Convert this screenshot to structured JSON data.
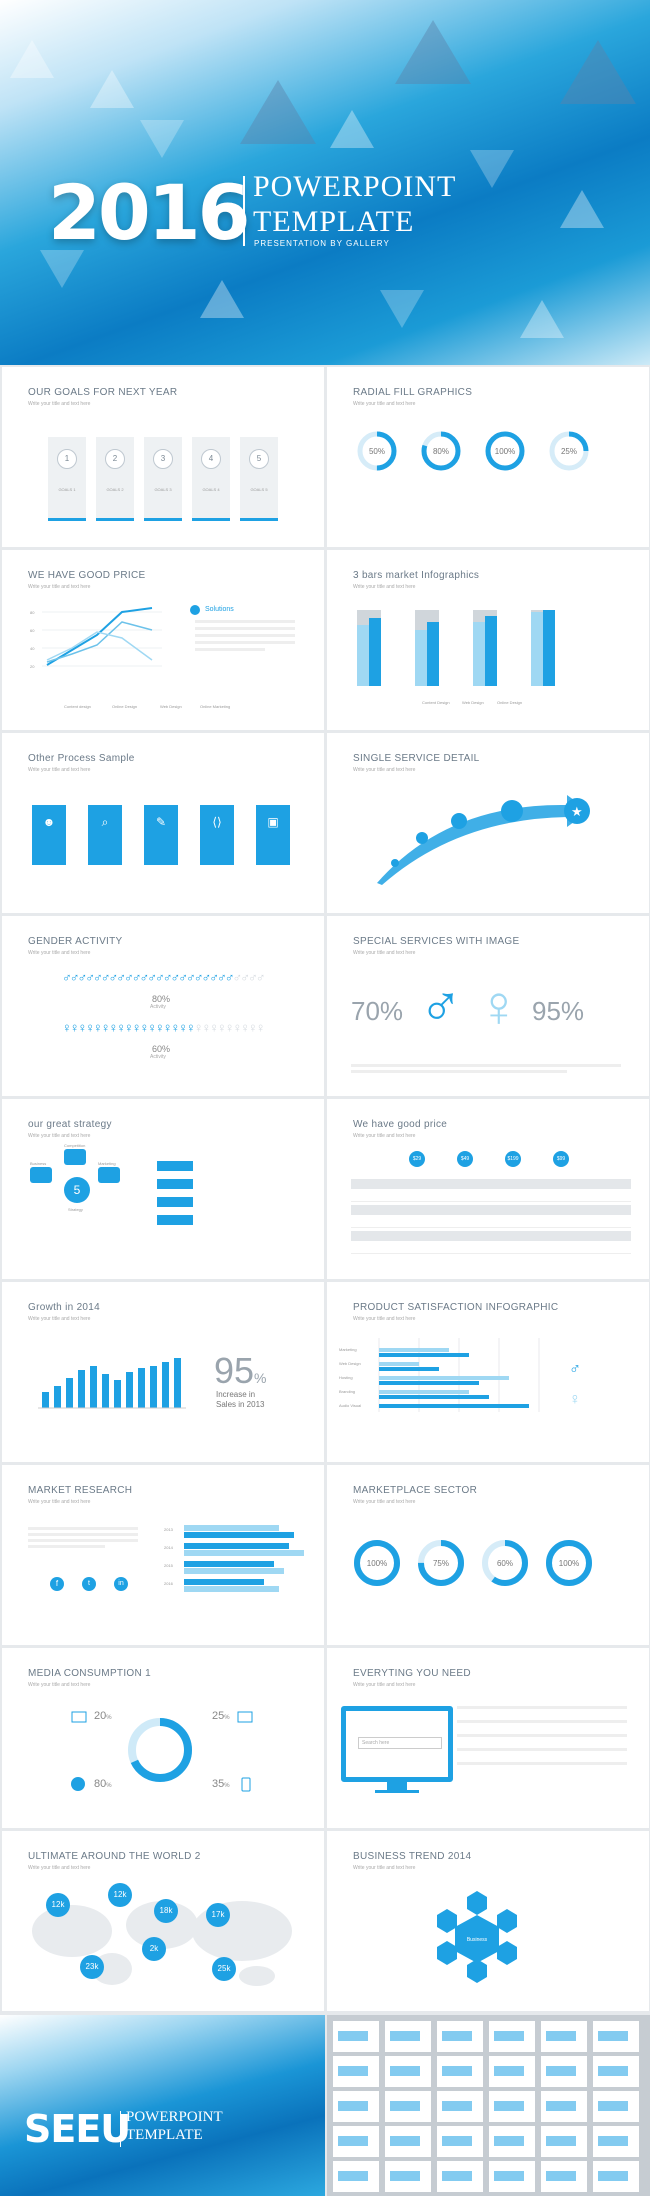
{
  "hero": {
    "year": "2016",
    "title_line1": "POWERPOINT",
    "title_line2": "TEMPLATE",
    "subtitle": "PRESENTATION BY GALLERY"
  },
  "slides": {
    "goals": {
      "title": "OUR GOALS FOR NEXT YEAR",
      "sub": "Write your title and text here",
      "numbers": [
        "1",
        "2",
        "3",
        "4",
        "5"
      ],
      "labels": [
        "GOALS 1",
        "GOALS 2",
        "GOALS 3",
        "GOALS 4",
        "GOALS 5"
      ]
    },
    "radial": {
      "title": "RADIAL FILL GRAPHICS",
      "sub": "Write your title and text here",
      "values": [
        "50%",
        "80%",
        "100%",
        "25%"
      ],
      "fractions": [
        0.5,
        0.8,
        1.0,
        0.25
      ]
    },
    "price": {
      "title": "WE HAVE GOOD PRICE",
      "sub": "Write your title and text here",
      "heading": "Solutions",
      "yticks": [
        "80",
        "60",
        "40",
        "20"
      ],
      "legend": [
        "Content design",
        "Online Design",
        "Web Design",
        "Online Marketing"
      ]
    },
    "bars3": {
      "title": "3 bars market Infographics",
      "sub": "Write your title and text here",
      "legend": [
        "Content Design",
        "Web Design",
        "Online Design"
      ]
    },
    "process": {
      "title": "Other Process Sample",
      "sub": "Write your title and text here",
      "icons": [
        "users-icon",
        "search-icon",
        "pen-icon",
        "code-icon",
        "printer-icon"
      ],
      "glyphs": [
        "☻",
        "⌕",
        "✎",
        "⟨⟩",
        "▣"
      ]
    },
    "service": {
      "title": "SINGLE SERVICE DETAIL",
      "sub": "Write your title and text here"
    },
    "gender": {
      "title": "GENDER ACTIVITY",
      "sub": "Write your title and text here",
      "pct1": "80%",
      "pct2": "60%",
      "label": "Activity"
    },
    "special": {
      "title": "SPECIAL SERVICES WITH IMAGE",
      "sub": "Write your title and text here",
      "male_pct": "70%",
      "female_pct": "95%"
    },
    "strategy": {
      "title": "our great strategy",
      "sub": "Write your title and text here",
      "center": "5",
      "nodes": [
        "Competition",
        "Marketing",
        "Strategy",
        "Business"
      ]
    },
    "pricing": {
      "title": "We have good price",
      "sub": "Write your title and text here",
      "plans": [
        "$29",
        "$49",
        "$199",
        "$99"
      ]
    },
    "growth": {
      "title": "Growth in 2014",
      "sub": "Write your title and text here",
      "big": "95",
      "unit": "%",
      "caption1": "Increase in",
      "caption2": "Sales in 2013"
    },
    "satisfaction": {
      "title": "PRODUCT SATISFACTION INFOGRAPHIC",
      "sub": "Write your title and text here",
      "rows": [
        "Marketing",
        "Web Design",
        "Hosting",
        "Branding",
        "Audio Visual"
      ]
    },
    "research": {
      "title": "MARKET RESEARCH",
      "sub": "Write your title and text here",
      "years": [
        "2013",
        "2014",
        "2015",
        "2016"
      ]
    },
    "sector": {
      "title": "MARKETPLACE SECTOR",
      "sub": "Write your title and text here",
      "values": [
        "100%",
        "75%",
        "60%",
        "100%"
      ],
      "fractions": [
        1.0,
        0.75,
        0.6,
        1.0
      ]
    },
    "media": {
      "title": "MEDIA CONSUMPTION 1",
      "sub": "Write your title and text here",
      "v1": "20",
      "v2": "25",
      "v3": "80",
      "v4": "35",
      "unit": "%"
    },
    "everything": {
      "title": "EVERYTING YOU NEED",
      "sub": "Write your title and text here",
      "search_placeholder": "Search here"
    },
    "world": {
      "title": "ULTIMATE AROUND THE WORLD 2",
      "sub": "Write your title and text here",
      "pins": [
        "12k",
        "12k",
        "18k",
        "17k",
        "2k",
        "23k",
        "25k"
      ]
    },
    "trend": {
      "title": "BUSINESS TREND 2014",
      "sub": "Write your title and text here",
      "center": "Business"
    }
  },
  "footer": {
    "brand": "SEEU",
    "title_line1": "POWERPOINT",
    "title_line2": "TEMPLATE"
  },
  "colors": {
    "accent": "#1ea1e3",
    "light": "#9fd8f3"
  }
}
